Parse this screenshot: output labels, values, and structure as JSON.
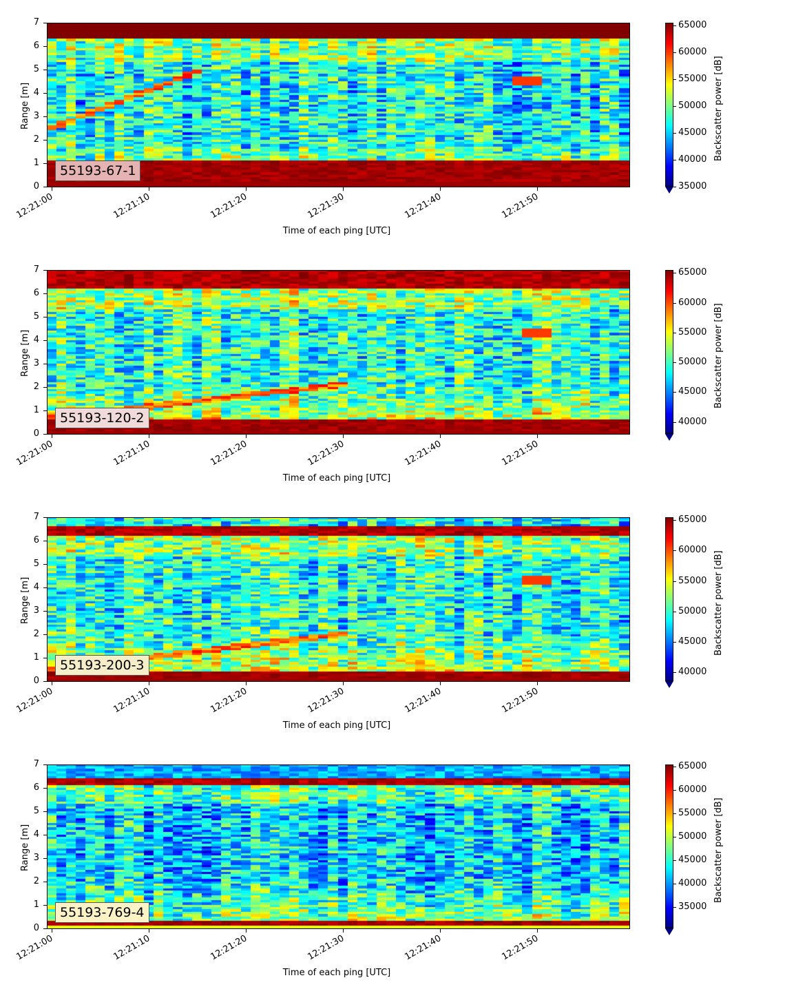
{
  "chart_data": [
    {
      "type": "heatmap",
      "label": "55193-67-1",
      "label_bg": "#e6b3b3",
      "xlabel": "Time of each ping [UTC]",
      "ylabel": "Range [m]",
      "x_ticks": [
        "12:21:00",
        "12:21:10",
        "12:21:20",
        "12:21:30",
        "12:21:40",
        "12:21:50"
      ],
      "x_range_seconds": [
        -0.5,
        59.5
      ],
      "y_ticks": [
        0,
        1,
        2,
        3,
        4,
        5,
        6,
        7
      ],
      "ylim": [
        0,
        7
      ],
      "colorbar": {
        "label": "Backscatter power [dB]",
        "ticks": [
          35000,
          40000,
          45000,
          50000,
          55000,
          60000,
          65000
        ],
        "min": 35000,
        "max": 65500,
        "extend": "min",
        "colormap": "jet"
      },
      "features": {
        "bottom_strong_band": [
          0.2,
          1.1
        ],
        "top_strong_band": [
          6.3,
          7.0
        ],
        "diagonal_echo": [
          [
            0,
            2.5
          ],
          [
            15,
            4.9
          ]
        ],
        "spot": [
          [
            49,
            4.5
          ]
        ]
      }
    },
    {
      "type": "heatmap",
      "label": "55193-120-2",
      "label_bg": "#f0dada",
      "xlabel": "Time of each ping [UTC]",
      "ylabel": "Range [m]",
      "x_ticks": [
        "12:21:00",
        "12:21:10",
        "12:21:20",
        "12:21:30",
        "12:21:40",
        "12:21:50"
      ],
      "x_range_seconds": [
        -0.5,
        59.5
      ],
      "y_ticks": [
        0,
        1,
        2,
        3,
        4,
        5,
        6,
        7
      ],
      "ylim": [
        0,
        7
      ],
      "colorbar": {
        "label": "Backscatter power [dB]",
        "ticks": [
          40000,
          45000,
          50000,
          55000,
          60000,
          65000
        ],
        "min": 38000,
        "max": 65500,
        "extend": "min",
        "colormap": "jet"
      },
      "features": {
        "bottom_strong_band": [
          0.1,
          0.6
        ],
        "top_strong_band": [
          6.2,
          7.0
        ],
        "diagonal_echo": [
          [
            0,
            0.7
          ],
          [
            30,
            2.1
          ]
        ],
        "spot": [
          [
            50,
            4.3
          ]
        ]
      }
    },
    {
      "type": "heatmap",
      "label": "55193-200-3",
      "label_bg": "#f5eec8",
      "xlabel": "Time of each ping [UTC]",
      "ylabel": "Range [m]",
      "x_ticks": [
        "12:21:00",
        "12:21:10",
        "12:21:20",
        "12:21:30",
        "12:21:40",
        "12:21:50"
      ],
      "x_range_seconds": [
        -0.5,
        59.5
      ],
      "y_ticks": [
        0,
        1,
        2,
        3,
        4,
        5,
        6,
        7
      ],
      "ylim": [
        0,
        7
      ],
      "colorbar": {
        "label": "Backscatter power [dB]",
        "ticks": [
          40000,
          45000,
          50000,
          55000,
          60000,
          65000
        ],
        "min": 38500,
        "max": 65500,
        "extend": "min",
        "colormap": "jet"
      },
      "features": {
        "bottom_strong_band": [
          0.1,
          0.4
        ],
        "top_strong_band": [
          6.2,
          6.6
        ],
        "diagonal_echo": [
          [
            0,
            0.5
          ],
          [
            30,
            2.0
          ]
        ],
        "spot": [
          [
            50,
            4.3
          ]
        ]
      }
    },
    {
      "type": "heatmap",
      "label": "55193-769-4",
      "label_bg": "#fbf2c6",
      "xlabel": "Time of each ping [UTC]",
      "ylabel": "Range [m]",
      "x_ticks": [
        "12:21:00",
        "12:21:10",
        "12:21:20",
        "12:21:30",
        "12:21:40",
        "12:21:50"
      ],
      "x_range_seconds": [
        -0.5,
        59.5
      ],
      "y_ticks": [
        0,
        1,
        2,
        3,
        4,
        5,
        6,
        7
      ],
      "ylim": [
        0,
        7
      ],
      "colorbar": {
        "label": "Backscatter power [dB]",
        "ticks": [
          35000,
          40000,
          45000,
          50000,
          55000,
          60000,
          65000
        ],
        "min": 30500,
        "max": 65500,
        "extend": "min",
        "colormap": "jet"
      },
      "features": {
        "bottom_strong_band": [
          0.15,
          0.3
        ],
        "top_strong_band": [
          6.1,
          6.4
        ],
        "diagonal_echo": [],
        "spot": []
      }
    }
  ]
}
